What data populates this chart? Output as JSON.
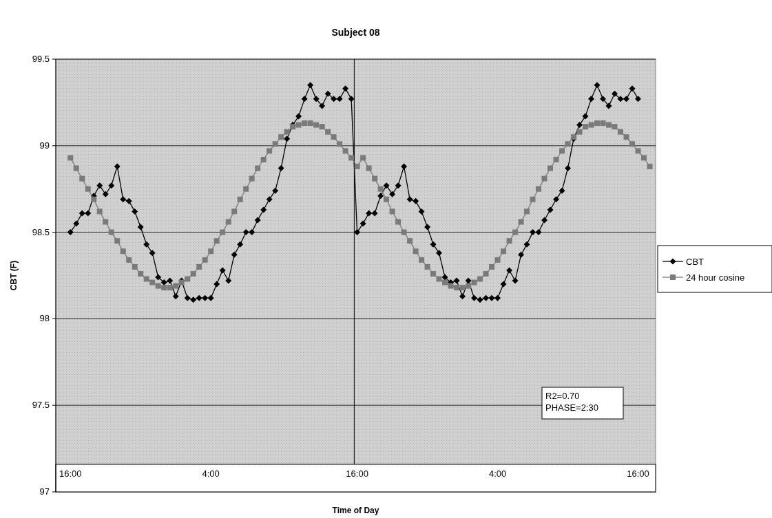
{
  "chart_data": {
    "type": "line",
    "title": "Subject 08",
    "xlabel": "Time of Day",
    "ylabel": "CBT (F)",
    "categories": [
      "16:00",
      null,
      null,
      null,
      null,
      null,
      null,
      null,
      null,
      null,
      null,
      null,
      null,
      null,
      null,
      null,
      null,
      null,
      null,
      null,
      null,
      null,
      null,
      null,
      "4:00",
      null,
      null,
      null,
      null,
      null,
      null,
      null,
      null,
      null,
      null,
      null,
      null,
      null,
      null,
      null,
      null,
      null,
      null,
      null,
      null,
      null,
      null,
      null,
      null,
      "16:00",
      null,
      null,
      null,
      null,
      null,
      null,
      null,
      null,
      null,
      null,
      null,
      null,
      null,
      null,
      null,
      null,
      null,
      null,
      null,
      null,
      null,
      null,
      null,
      "4:00",
      null,
      null,
      null,
      null,
      null,
      null,
      null,
      null,
      null,
      null,
      null,
      null,
      null,
      null,
      null,
      null,
      null,
      null,
      null,
      null,
      null,
      null,
      null,
      "16:00",
      null,
      null
    ],
    "ylim": [
      97,
      99.5
    ],
    "yticks": [
      97,
      97.5,
      98,
      98.5,
      99,
      99.5
    ],
    "grid": "y",
    "legend": "right",
    "annotations": [
      "R2=0.70",
      "PHASE=2:30"
    ],
    "series": [
      {
        "name": "CBT",
        "color": "#000000",
        "marker": "diamond",
        "values": [
          98.5,
          98.55,
          98.61,
          98.61,
          98.71,
          98.77,
          98.72,
          98.77,
          98.88,
          98.69,
          98.68,
          98.62,
          98.53,
          98.43,
          98.38,
          98.24,
          98.21,
          98.22,
          98.13,
          98.22,
          98.12,
          98.11,
          98.12,
          98.12,
          98.12,
          98.2,
          98.28,
          98.22,
          98.37,
          98.43,
          98.5,
          98.5,
          98.57,
          98.63,
          98.69,
          98.74,
          98.87,
          99.04,
          99.12,
          99.17,
          99.27,
          99.35,
          99.27,
          99.23,
          99.3,
          99.27,
          99.27,
          99.33,
          99.27,
          98.5,
          98.55,
          98.61,
          98.61,
          98.71,
          98.77,
          98.72,
          98.77,
          98.88,
          98.69,
          98.68,
          98.62,
          98.53,
          98.43,
          98.38,
          98.24,
          98.21,
          98.22,
          98.13,
          98.22,
          98.12,
          98.11,
          98.12,
          98.12,
          98.12,
          98.2,
          98.28,
          98.22,
          98.37,
          98.43,
          98.5,
          98.5,
          98.57,
          98.63,
          98.69,
          98.74,
          98.87,
          99.04,
          99.12,
          99.17,
          99.27,
          99.35,
          99.27,
          99.23,
          99.3,
          99.27,
          99.27,
          99.33,
          99.27,
          null,
          null
        ]
      },
      {
        "name": "24 hour cosine",
        "color": "#7a7a7a",
        "marker": "square",
        "values": [
          98.93,
          98.87,
          98.81,
          98.75,
          98.69,
          98.62,
          98.56,
          98.5,
          98.45,
          98.39,
          98.34,
          98.3,
          98.26,
          98.23,
          98.21,
          98.19,
          98.18,
          98.18,
          98.19,
          98.21,
          98.23,
          98.26,
          98.3,
          98.34,
          98.39,
          98.45,
          98.5,
          98.56,
          98.62,
          98.69,
          98.75,
          98.81,
          98.87,
          98.92,
          98.97,
          99.01,
          99.05,
          99.08,
          99.11,
          99.12,
          99.13,
          99.13,
          99.12,
          99.11,
          99.08,
          99.05,
          99.01,
          98.97,
          98.93,
          98.88,
          98.93,
          98.87,
          98.81,
          98.75,
          98.69,
          98.62,
          98.56,
          98.5,
          98.45,
          98.39,
          98.34,
          98.3,
          98.26,
          98.23,
          98.21,
          98.19,
          98.18,
          98.18,
          98.19,
          98.21,
          98.23,
          98.26,
          98.3,
          98.34,
          98.39,
          98.45,
          98.5,
          98.56,
          98.62,
          98.69,
          98.75,
          98.81,
          98.87,
          98.92,
          98.97,
          99.01,
          99.05,
          99.08,
          99.11,
          99.12,
          99.13,
          99.13,
          99.12,
          99.11,
          99.08,
          99.05,
          99.01,
          98.97,
          98.93,
          98.88
        ]
      }
    ]
  }
}
